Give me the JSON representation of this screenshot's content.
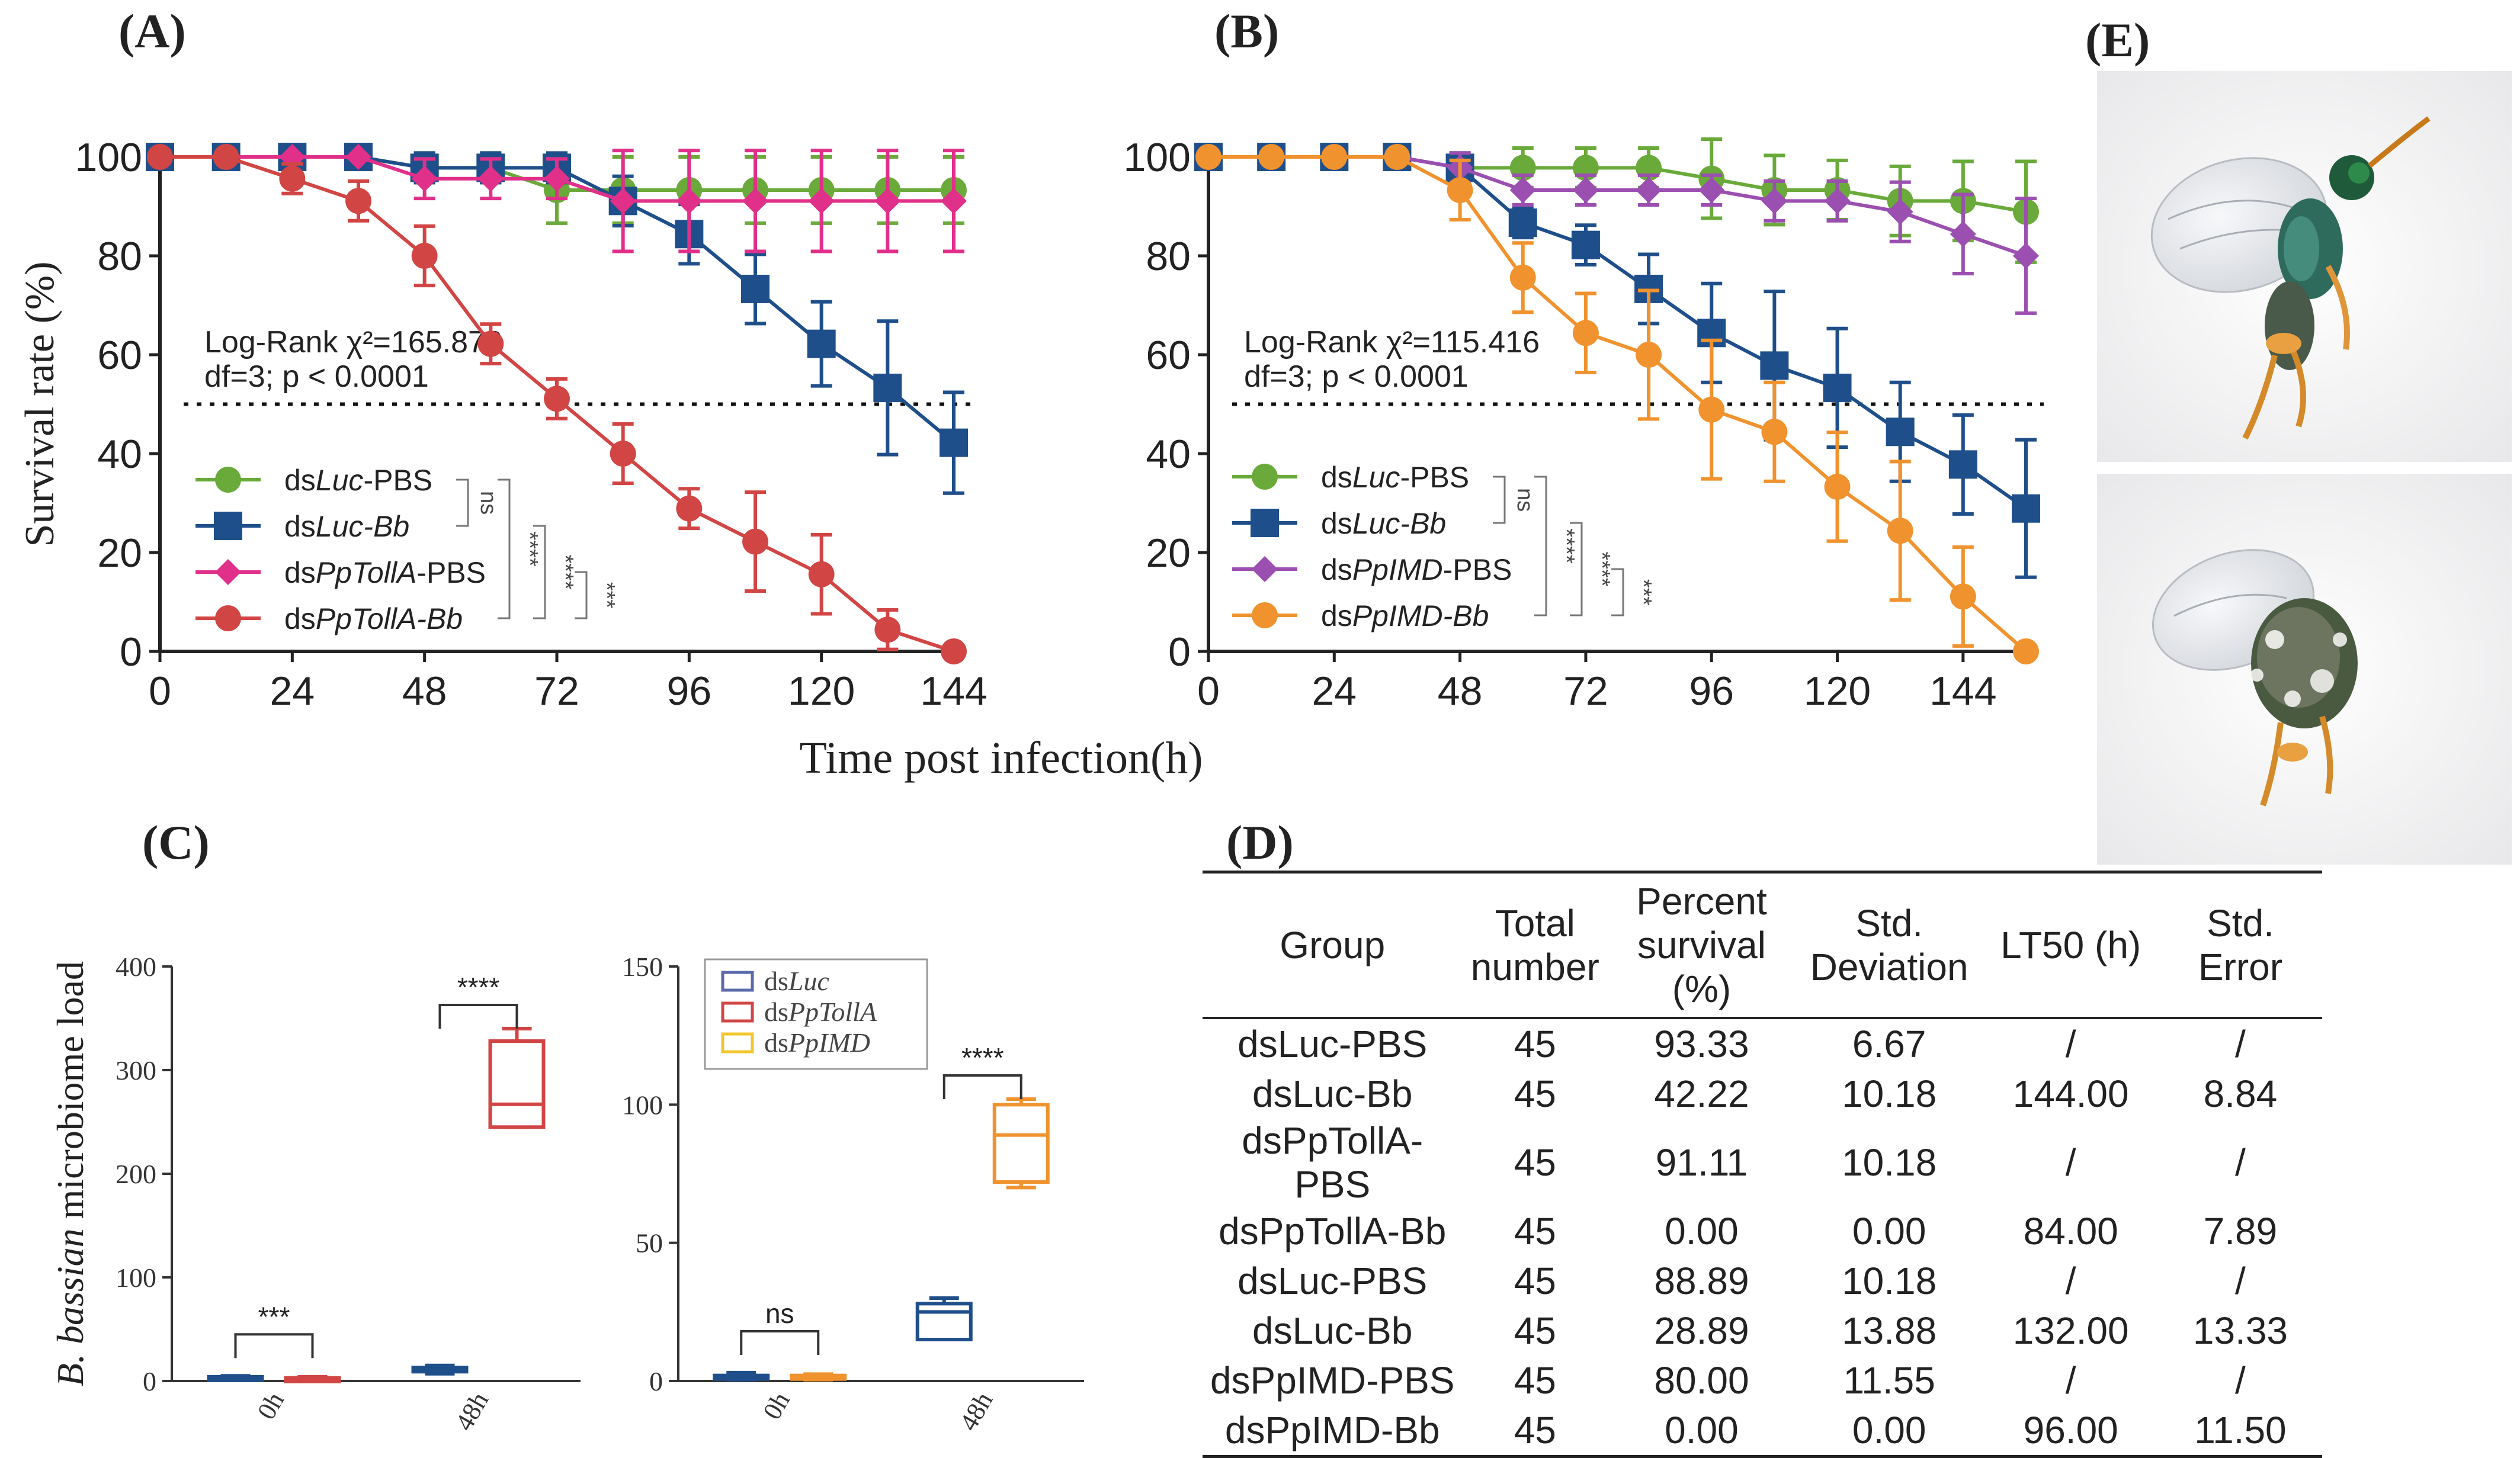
{
  "panels": {
    "A": "(A)",
    "B": "(B)",
    "C": "(C)",
    "D": "(D)",
    "E": "(E)"
  },
  "shared_xlabel": "Time post infection(h)",
  "chart_data": [
    {
      "id": "A",
      "type": "line",
      "title": "",
      "xlabel": "Time post infection(h)",
      "ylabel": "Survival rate (%)",
      "xlim": [
        0,
        144
      ],
      "ylim": [
        0,
        100
      ],
      "xticks": [
        0,
        24,
        48,
        72,
        96,
        120,
        144
      ],
      "yticks": [
        0,
        20,
        40,
        60,
        80,
        100
      ],
      "reference_line": 50,
      "annotation": {
        "line1": "Log-Rank χ²=165.872",
        "line2": "df=3; p < 0.0001"
      },
      "significance": [
        "ns",
        "****",
        "****",
        "***"
      ],
      "series": [
        {
          "name": "dsLuc-PBS",
          "legend_prefix": "ds",
          "legend_italic": "Luc",
          "legend_suffix": "-PBS",
          "color": "#6aaa3a",
          "marker": "circle",
          "x": [
            0,
            12,
            24,
            36,
            48,
            60,
            72,
            84,
            96,
            108,
            120,
            132,
            144
          ],
          "y": [
            100,
            100,
            100,
            100,
            97.8,
            97.8,
            93.3,
            93.3,
            93.3,
            93.3,
            93.3,
            93.3,
            93.3
          ],
          "err": [
            0,
            0,
            0,
            0,
            3,
            3,
            6.7,
            6.7,
            6.7,
            6.7,
            6.7,
            6.7,
            6.7
          ]
        },
        {
          "name": "dsLuc-Bb",
          "legend_prefix": "ds",
          "legend_italic": "Luc-Bb",
          "legend_suffix": "",
          "color": "#1f4f8a",
          "marker": "square",
          "x": [
            0,
            12,
            24,
            36,
            48,
            60,
            72,
            84,
            96,
            108,
            120,
            132,
            144
          ],
          "y": [
            100,
            100,
            100,
            100,
            97.8,
            97.8,
            97.8,
            91.1,
            84.4,
            73.3,
            62.2,
            53.3,
            42.2
          ],
          "err": [
            0,
            0,
            0,
            0,
            3,
            3,
            3,
            5,
            6,
            7,
            8.5,
            13.5,
            10.2
          ]
        },
        {
          "name": "dsPpTollA-PBS",
          "legend_prefix": "ds",
          "legend_italic": "PpTollA",
          "legend_suffix": "-PBS",
          "color": "#e0308a",
          "marker": "diamond",
          "x": [
            0,
            12,
            24,
            36,
            48,
            60,
            72,
            84,
            96,
            108,
            120,
            132,
            144
          ],
          "y": [
            100,
            100,
            100,
            100,
            95.6,
            95.6,
            95.6,
            91.1,
            91.1,
            91.1,
            91.1,
            91.1,
            91.1
          ],
          "err": [
            0,
            0,
            0,
            0,
            4,
            4,
            4,
            10.2,
            10.2,
            10.2,
            10.2,
            10.2,
            10.2
          ]
        },
        {
          "name": "dsPpTollA-Bb",
          "legend_prefix": "ds",
          "legend_italic": "PpTollA-Bb",
          "legend_suffix": "",
          "color": "#d24545",
          "marker": "circle",
          "x": [
            0,
            12,
            24,
            36,
            48,
            60,
            72,
            84,
            96,
            108,
            120,
            132,
            144
          ],
          "y": [
            100,
            100,
            95.6,
            91.1,
            80,
            62.2,
            51.1,
            40,
            28.9,
            22.2,
            15.6,
            4.4,
            0
          ],
          "err": [
            0,
            0,
            3,
            4,
            6,
            4,
            4,
            6,
            4,
            10,
            8,
            4,
            0
          ]
        }
      ]
    },
    {
      "id": "B",
      "type": "line",
      "title": "",
      "xlabel": "Time post infection(h)",
      "ylabel": "",
      "xlim": [
        0,
        156
      ],
      "ylim": [
        0,
        100
      ],
      "xticks": [
        0,
        24,
        48,
        72,
        96,
        120,
        144
      ],
      "yticks": [
        0,
        20,
        40,
        60,
        80,
        100
      ],
      "reference_line": 50,
      "annotation": {
        "line1": "Log-Rank χ²=115.416",
        "line2": "df=3; p < 0.0001"
      },
      "significance": [
        "ns",
        "****",
        "****",
        "***"
      ],
      "series": [
        {
          "name": "dsLuc-PBS",
          "legend_prefix": "ds",
          "legend_italic": "Luc",
          "legend_suffix": "-PBS",
          "color": "#6aaa3a",
          "marker": "circle",
          "x": [
            0,
            12,
            24,
            36,
            48,
            60,
            72,
            84,
            96,
            108,
            120,
            132,
            144,
            156
          ],
          "y": [
            100,
            100,
            100,
            100,
            97.8,
            97.8,
            97.8,
            97.8,
            95.6,
            93.3,
            93.3,
            91.1,
            91.1,
            88.9
          ],
          "err": [
            0,
            0,
            0,
            0,
            3,
            4,
            4,
            4,
            8,
            7,
            6,
            7,
            8,
            10.2
          ]
        },
        {
          "name": "dsLuc-Bb",
          "legend_prefix": "ds",
          "legend_italic": "Luc-Bb",
          "legend_suffix": "",
          "color": "#1f4f8a",
          "marker": "square",
          "x": [
            0,
            12,
            24,
            36,
            48,
            60,
            72,
            84,
            96,
            108,
            120,
            132,
            144,
            156
          ],
          "y": [
            100,
            100,
            100,
            100,
            97.8,
            86.7,
            82.2,
            73.3,
            64.4,
            57.8,
            53.3,
            44.4,
            37.8,
            28.9
          ],
          "err": [
            0,
            0,
            0,
            0,
            3,
            3,
            4,
            7,
            10,
            15,
            12,
            10,
            10,
            13.9
          ]
        },
        {
          "name": "dsPpIMD-PBS",
          "legend_prefix": "ds",
          "legend_italic": "PpIMD",
          "legend_suffix": "-PBS",
          "color": "#9b4fb0",
          "marker": "diamond",
          "x": [
            0,
            12,
            24,
            36,
            48,
            60,
            72,
            84,
            96,
            108,
            120,
            132,
            144,
            156
          ],
          "y": [
            100,
            100,
            100,
            100,
            97.8,
            93.3,
            93.3,
            93.3,
            93.3,
            91.1,
            91.1,
            88.9,
            84.4,
            80
          ],
          "err": [
            0,
            0,
            0,
            0,
            3,
            3,
            3,
            3,
            3,
            4,
            4,
            6,
            8,
            11.6
          ]
        },
        {
          "name": "dsPpIMD-Bb",
          "legend_prefix": "ds",
          "legend_italic": "PpIMD-Bb",
          "legend_suffix": "",
          "color": "#f0922e",
          "marker": "circle",
          "x": [
            0,
            12,
            24,
            36,
            48,
            60,
            72,
            84,
            96,
            108,
            120,
            132,
            144,
            156
          ],
          "y": [
            100,
            100,
            100,
            100,
            93.3,
            75.6,
            64.4,
            60,
            48.9,
            44.4,
            33.3,
            24.4,
            11.1,
            0
          ],
          "err": [
            0,
            0,
            0,
            0,
            6,
            7,
            8,
            13,
            14,
            10,
            11,
            14,
            10,
            0
          ]
        }
      ]
    },
    {
      "id": "C1",
      "type": "box",
      "ylabel_italic": "B. bassian",
      "ylabel_rest": " microbiome load",
      "ylim": [
        0,
        400
      ],
      "yticks": [
        0,
        100,
        200,
        300,
        400
      ],
      "categories": [
        "0h",
        "48h"
      ],
      "series": [
        {
          "name": "dsLuc",
          "color": "#1f4f8a",
          "boxes": [
            {
              "min": 1,
              "q1": 2,
              "median": 3,
              "q3": 4,
              "max": 5
            },
            {
              "min": 7,
              "q1": 9,
              "median": 11,
              "q3": 13,
              "max": 15
            }
          ]
        },
        {
          "name": "dsPpTollA",
          "color": "#d24545",
          "boxes": [
            {
              "min": 1,
              "q1": 2,
              "median": 2.5,
              "q3": 3,
              "max": 4
            },
            {
              "min": 245,
              "q1": 245,
              "median": 267,
              "q3": 328,
              "max": 340
            }
          ]
        }
      ],
      "significance": [
        {
          "category": "0h",
          "label": "***"
        },
        {
          "category": "48h",
          "label": "****"
        }
      ]
    },
    {
      "id": "C2",
      "type": "box",
      "ylim": [
        0,
        150
      ],
      "yticks": [
        0,
        50,
        100,
        150
      ],
      "categories": [
        "0h",
        "48h"
      ],
      "legend": [
        {
          "prefix": "ds",
          "italic": "Luc",
          "color": "#5a6aa8"
        },
        {
          "prefix": "ds",
          "italic": "PpTollA",
          "color": "#d24545"
        },
        {
          "prefix": "ds",
          "italic": "PpIMD",
          "color": "#f2c72e"
        }
      ],
      "series": [
        {
          "name": "dsLuc",
          "color": "#1f4f8a",
          "boxes": [
            {
              "min": 0.5,
              "q1": 1,
              "median": 1.5,
              "q3": 2,
              "max": 3
            },
            {
              "min": 15,
              "q1": 15,
              "median": 25,
              "q3": 28,
              "max": 30
            }
          ]
        },
        {
          "name": "dsPpIMD",
          "color": "#f0922e",
          "boxes": [
            {
              "min": 0.5,
              "q1": 1,
              "median": 1.5,
              "q3": 2,
              "max": 2.5
            },
            {
              "min": 70,
              "q1": 72,
              "median": 89,
              "q3": 100,
              "max": 102
            }
          ]
        }
      ],
      "significance": [
        {
          "category": "0h",
          "label": "ns"
        },
        {
          "category": "48h",
          "label": "****"
        }
      ]
    },
    {
      "id": "D",
      "type": "table",
      "columns": [
        "Group",
        "Total number",
        "Percent survival (%)",
        "Std. Deviation",
        "LT50 (h)",
        "Std. Error"
      ],
      "rows": [
        [
          "dsLuc-PBS",
          "45",
          "93.33",
          "6.67",
          "/",
          "/"
        ],
        [
          "dsLuc-Bb",
          "45",
          "42.22",
          "10.18",
          "144.00",
          "8.84"
        ],
        [
          "dsPpTollA-PBS",
          "45",
          "91.11",
          "10.18",
          "/",
          "/"
        ],
        [
          "dsPpTollA-Bb",
          "45",
          "0.00",
          "0.00",
          "84.00",
          "7.89"
        ],
        [
          "dsLuc-PBS",
          "45",
          "88.89",
          "10.18",
          "/",
          "/"
        ],
        [
          "dsLuc-Bb",
          "45",
          "28.89",
          "13.88",
          "132.00",
          "13.33"
        ],
        [
          "dsPpIMD-PBS",
          "45",
          "80.00",
          "11.55",
          "/",
          "/"
        ],
        [
          "dsPpIMD-Bb",
          "45",
          "0.00",
          "0.00",
          "96.00",
          "11.50"
        ]
      ]
    }
  ]
}
